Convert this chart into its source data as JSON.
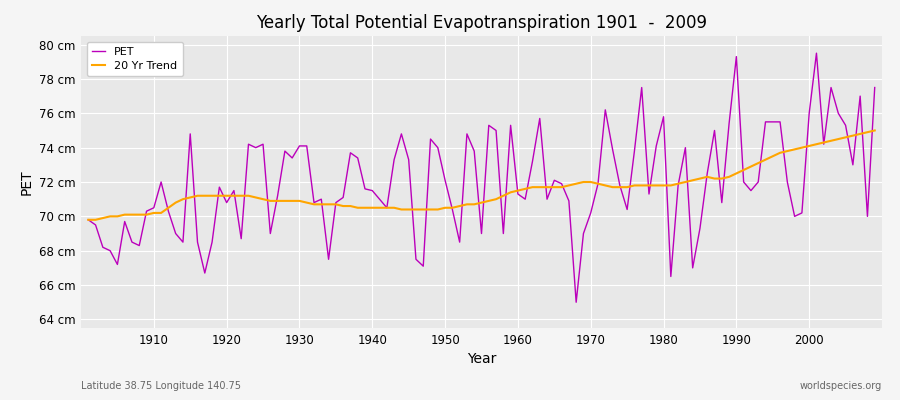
{
  "title": "Yearly Total Potential Evapotranspiration 1901  -  2009",
  "xlabel": "Year",
  "ylabel": "PET",
  "subtitle_left": "Latitude 38.75 Longitude 140.75",
  "subtitle_right": "worldspecies.org",
  "pet_color": "#BB00BB",
  "trend_color": "#FFA500",
  "plot_bg_color": "#E8E8E8",
  "fig_bg_color": "#F5F5F5",
  "grid_color": "#FFFFFF",
  "ylim": [
    63.5,
    80.5
  ],
  "yticks": [
    64,
    66,
    68,
    70,
    72,
    74,
    76,
    78,
    80
  ],
  "ytick_labels": [
    "64 cm",
    "66 cm",
    "68 cm",
    "70 cm",
    "72 cm",
    "74 cm",
    "76 cm",
    "78 cm",
    "80 cm"
  ],
  "years": [
    1901,
    1902,
    1903,
    1904,
    1905,
    1906,
    1907,
    1908,
    1909,
    1910,
    1911,
    1912,
    1913,
    1914,
    1915,
    1916,
    1917,
    1918,
    1919,
    1920,
    1921,
    1922,
    1923,
    1924,
    1925,
    1926,
    1927,
    1928,
    1929,
    1930,
    1931,
    1932,
    1933,
    1934,
    1935,
    1936,
    1937,
    1938,
    1939,
    1940,
    1941,
    1942,
    1943,
    1944,
    1945,
    1946,
    1947,
    1948,
    1949,
    1950,
    1951,
    1952,
    1953,
    1954,
    1955,
    1956,
    1957,
    1958,
    1959,
    1960,
    1961,
    1962,
    1963,
    1964,
    1965,
    1966,
    1967,
    1968,
    1969,
    1970,
    1971,
    1972,
    1973,
    1974,
    1975,
    1976,
    1977,
    1978,
    1979,
    1980,
    1981,
    1982,
    1983,
    1984,
    1985,
    1986,
    1987,
    1988,
    1989,
    1990,
    1991,
    1992,
    1993,
    1994,
    1995,
    1996,
    1997,
    1998,
    1999,
    2000,
    2001,
    2002,
    2003,
    2004,
    2005,
    2006,
    2007,
    2008,
    2009
  ],
  "pet_values": [
    69.8,
    69.5,
    68.2,
    68.0,
    67.2,
    69.7,
    68.5,
    68.3,
    70.3,
    70.5,
    72.0,
    70.3,
    69.0,
    68.5,
    74.8,
    68.5,
    66.7,
    68.5,
    71.7,
    70.8,
    71.5,
    68.7,
    74.2,
    74.0,
    74.2,
    69.0,
    71.2,
    73.8,
    73.4,
    74.1,
    74.1,
    70.8,
    71.0,
    67.5,
    70.8,
    71.1,
    73.7,
    73.4,
    71.6,
    71.5,
    71.0,
    70.5,
    73.3,
    74.8,
    73.3,
    67.5,
    67.1,
    74.5,
    74.0,
    72.1,
    70.4,
    68.5,
    74.8,
    73.8,
    69.0,
    75.3,
    75.0,
    69.0,
    75.3,
    71.3,
    71.0,
    73.2,
    75.7,
    71.0,
    72.1,
    71.9,
    70.9,
    65.0,
    69.0,
    70.2,
    71.9,
    76.2,
    73.9,
    71.8,
    70.4,
    73.8,
    77.5,
    71.3,
    74.1,
    75.8,
    66.5,
    71.8,
    74.0,
    67.0,
    69.3,
    72.5,
    75.0,
    70.8,
    75.4,
    79.3,
    72.0,
    71.5,
    72.0,
    75.5,
    75.5,
    75.5,
    72.0,
    70.0,
    70.2,
    76.0,
    79.5,
    74.2,
    77.5,
    76.0,
    75.3,
    73.0,
    77.0,
    70.0,
    77.5
  ],
  "trend_years": [
    1901,
    1902,
    1903,
    1904,
    1905,
    1906,
    1907,
    1908,
    1909,
    1910,
    1911,
    1912,
    1913,
    1914,
    1915,
    1916,
    1917,
    1918,
    1919,
    1920,
    1921,
    1922,
    1923,
    1924,
    1925,
    1926,
    1927,
    1928,
    1929,
    1930,
    1931,
    1932,
    1933,
    1934,
    1935,
    1936,
    1937,
    1938,
    1939,
    1940,
    1941,
    1942,
    1943,
    1944,
    1945,
    1946,
    1947,
    1948,
    1949,
    1950,
    1951,
    1952,
    1953,
    1954,
    1955,
    1956,
    1957,
    1958,
    1959,
    1960,
    1961,
    1962,
    1963,
    1964,
    1965,
    1966,
    1967,
    1968,
    1969,
    1970,
    1971,
    1972,
    1973,
    1974,
    1975,
    1976,
    1977,
    1978,
    1979,
    1980,
    1981,
    1982,
    1983,
    1984,
    1985,
    1986,
    1987,
    1988,
    1989,
    1990,
    1991,
    1992,
    1993,
    1994,
    1995,
    1996,
    1997,
    1998,
    1999,
    2000,
    2001,
    2002,
    2003,
    2004,
    2005,
    2006,
    2007,
    2008,
    2009
  ],
  "trend_values": [
    69.8,
    69.8,
    69.9,
    70.0,
    70.0,
    70.1,
    70.1,
    70.1,
    70.1,
    70.2,
    70.2,
    70.5,
    70.8,
    71.0,
    71.1,
    71.2,
    71.2,
    71.2,
    71.2,
    71.2,
    71.2,
    71.2,
    71.2,
    71.1,
    71.0,
    70.9,
    70.9,
    70.9,
    70.9,
    70.9,
    70.8,
    70.7,
    70.7,
    70.7,
    70.7,
    70.6,
    70.6,
    70.5,
    70.5,
    70.5,
    70.5,
    70.5,
    70.5,
    70.4,
    70.4,
    70.4,
    70.4,
    70.4,
    70.4,
    70.5,
    70.5,
    70.6,
    70.7,
    70.7,
    70.8,
    70.9,
    71.0,
    71.2,
    71.4,
    71.5,
    71.6,
    71.7,
    71.7,
    71.7,
    71.7,
    71.7,
    71.8,
    71.9,
    72.0,
    72.0,
    71.9,
    71.8,
    71.7,
    71.7,
    71.7,
    71.8,
    71.8,
    71.8,
    71.8,
    71.8,
    71.8,
    71.9,
    72.0,
    72.1,
    72.2,
    72.3,
    72.2,
    72.2,
    72.3,
    72.5,
    72.7,
    72.9,
    73.1,
    73.3,
    73.5,
    73.7,
    73.8,
    73.9,
    74.0,
    74.1,
    74.2,
    74.3,
    74.4,
    74.5,
    74.6,
    74.7,
    74.8,
    74.9,
    75.0
  ]
}
